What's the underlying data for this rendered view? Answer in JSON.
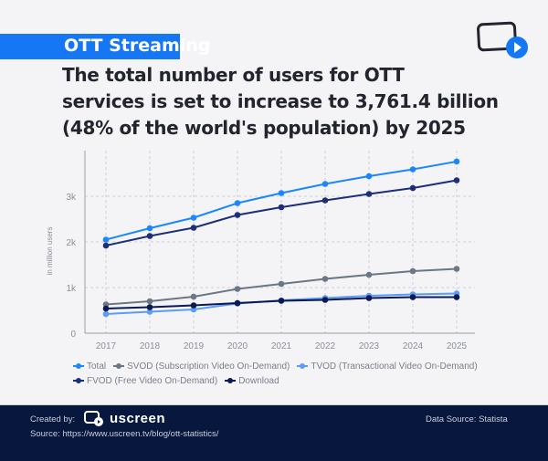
{
  "header": {
    "banner": "OTT Streaming",
    "title_lines": [
      "The total number of users for OTT",
      "services is set to increase to 3,761.4 billion",
      "(48% of the world's population) by 2025"
    ]
  },
  "footer": {
    "created_by": "Created by:",
    "brand": "uscreen",
    "source": "Source: https://www.uscreen.tv/blog/ott-statistics/",
    "data_source": "Data Source: Statista"
  },
  "colors": {
    "accent": "#1677f5",
    "footer_bg": "#07173e"
  },
  "chart_data": {
    "type": "line",
    "ylabel": "in million users",
    "x": [
      2017,
      2018,
      2019,
      2020,
      2021,
      2022,
      2023,
      2024,
      2025
    ],
    "ylim": [
      0,
      3900
    ],
    "yticks": [
      0,
      1000,
      2000,
      3000
    ],
    "ytick_labels": [
      "0",
      "1k",
      "2k",
      "3k"
    ],
    "grid": true,
    "legend_position": "bottom",
    "series": [
      {
        "name": "Total",
        "color": "#1a86ff",
        "values": [
          2050,
          2300,
          2530,
          2850,
          3070,
          3270,
          3440,
          3590,
          3761.4
        ]
      },
      {
        "name": "SVOD (Subscription Video On-Demand)",
        "color": "#6b7785",
        "values": [
          630,
          700,
          800,
          970,
          1080,
          1190,
          1280,
          1360,
          1410
        ]
      },
      {
        "name": "TVOD (Transactional Video On-Demand)",
        "color": "#5b9cf6",
        "values": [
          420,
          470,
          520,
          650,
          720,
          770,
          820,
          850,
          870
        ]
      },
      {
        "name": "FVOD (Free Video On-Demand)",
        "color": "#1c2f78",
        "values": [
          1920,
          2130,
          2310,
          2590,
          2760,
          2910,
          3050,
          3180,
          3350
        ]
      },
      {
        "name": "Download",
        "color": "#0b1a55",
        "values": [
          540,
          570,
          610,
          660,
          710,
          730,
          770,
          790,
          790
        ]
      }
    ]
  }
}
